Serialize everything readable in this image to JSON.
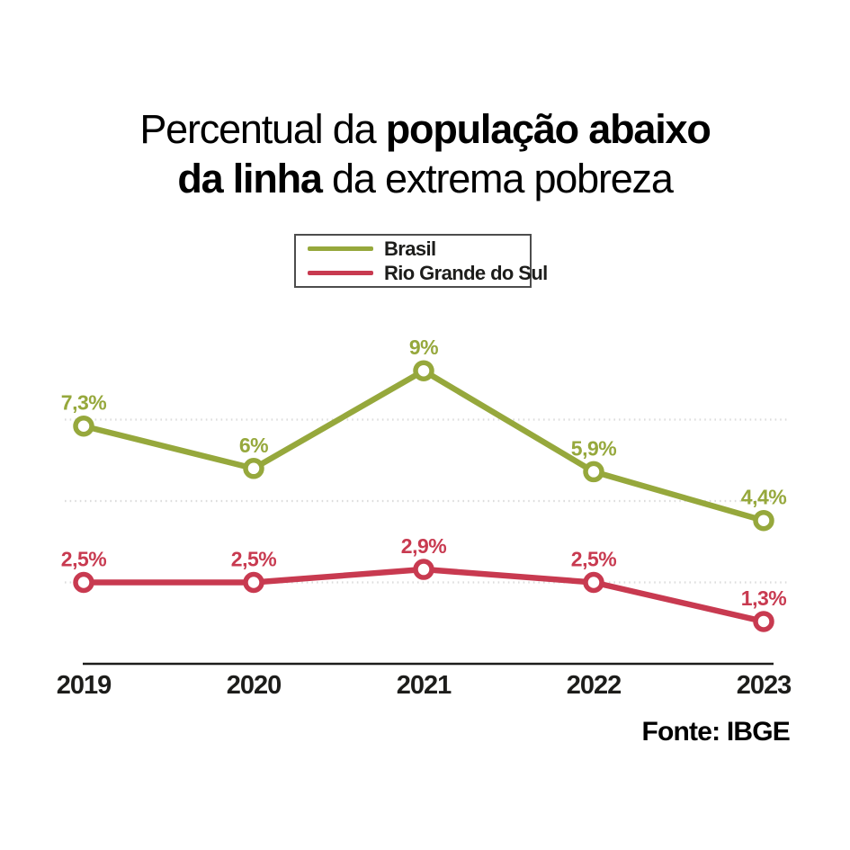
{
  "title": {
    "l1a": "Percentual da ",
    "l1b": "população abaixo",
    "l2a": "da linha",
    "l2b": " da extrema pobreza"
  },
  "legend": {
    "items": [
      {
        "label": "Brasil",
        "color": "#96A83C"
      },
      {
        "label": "Rio Grande do Sul",
        "color": "#C83A50"
      }
    ]
  },
  "source": "Fonte: IBGE",
  "colors": {
    "brasil_line": "#96A83C",
    "rs_line": "#C83A50",
    "gridline": "#dcdcdc",
    "axis": "#1d1d1b",
    "text": "#000000",
    "background": "#ffffff"
  },
  "chart_data": {
    "type": "line",
    "title": "Percentual da população abaixo da linha da extrema pobreza",
    "categories": [
      "2019",
      "2020",
      "2021",
      "2022",
      "2023"
    ],
    "series": [
      {
        "name": "Brasil",
        "color": "#96A83C",
        "values": [
          7.3,
          6,
          9,
          5.9,
          4.4
        ],
        "labels": [
          "7,3%",
          "6%",
          "9%",
          "5,9%",
          "4,4%"
        ]
      },
      {
        "name": "Rio Grande do Sul",
        "color": "#C83A50",
        "values": [
          2.5,
          2.5,
          2.9,
          2.5,
          1.3
        ],
        "labels": [
          "2,5%",
          "2,5%",
          "2,9%",
          "2,5%",
          "1,3%"
        ]
      }
    ],
    "xlabel": "",
    "ylabel": "",
    "ylim": [
      0,
      10
    ],
    "gridlines": [
      2.5,
      5,
      7.5
    ],
    "grid_style": "dotted",
    "legend_position": "top-center",
    "source": "Fonte: IBGE"
  }
}
